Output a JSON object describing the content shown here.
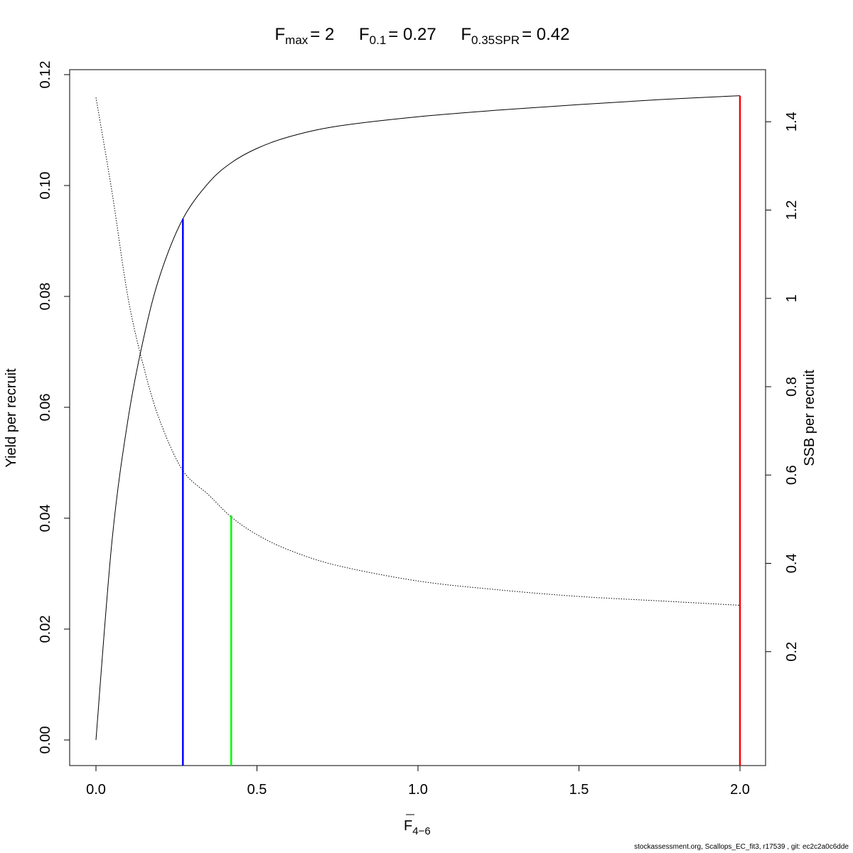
{
  "chart_data": {
    "type": "line",
    "title_parts": {
      "fmax_label": "F",
      "fmax_sub": "max",
      "fmax_value": "= 2",
      "f01_label": "F",
      "f01_sub": "0.1",
      "f01_value": "= 0.27",
      "fspr_label": "F",
      "fspr_sub": "0.35SPR",
      "fspr_value": "= 0.42"
    },
    "xlabel": {
      "main": "F",
      "sub": "4−6"
    },
    "ylabel": "Yield per recruit",
    "y2label": "SSB per recruit",
    "xlim": [
      0,
      2
    ],
    "ylim": [
      0,
      0.12
    ],
    "y2lim": [
      0,
      1.46
    ],
    "x_ticks": [
      0,
      0.5,
      1,
      1.5,
      2
    ],
    "x_tick_labels": [
      "0.0",
      "0.5",
      "1.0",
      "1.5",
      "2.0"
    ],
    "y_ticks": [
      0,
      0.02,
      0.04,
      0.06,
      0.08,
      0.1,
      0.12
    ],
    "y_tick_labels": [
      "0.00",
      "0.02",
      "0.04",
      "0.06",
      "0.08",
      "0.10",
      "0.12"
    ],
    "y2_ticks": [
      0.2,
      0.4,
      0.6,
      0.8,
      1,
      1.2,
      1.4
    ],
    "y2_tick_labels": [
      "0.2",
      "0.4",
      "0.6",
      "0.8",
      "1",
      "1.2",
      "1.4"
    ],
    "series": [
      {
        "axis": "left",
        "style": "solid",
        "color": "#000000",
        "x": [
          0,
          0.05,
          0.1,
          0.15,
          0.2,
          0.27,
          0.35,
          0.42,
          0.5,
          0.6,
          0.75,
          1.0,
          1.25,
          1.5,
          1.75,
          2.0
        ],
        "y": [
          0,
          0.036,
          0.058,
          0.073,
          0.084,
          0.094,
          0.1005,
          0.1041,
          0.1067,
          0.1088,
          0.1107,
          0.1124,
          0.1136,
          0.1146,
          0.1155,
          0.1162
        ]
      },
      {
        "axis": "right",
        "style": "dotted",
        "color": "#000000",
        "x": [
          0,
          0.05,
          0.1,
          0.15,
          0.2,
          0.27,
          0.35,
          0.42,
          0.5,
          0.6,
          0.75,
          1.0,
          1.25,
          1.5,
          1.75,
          2.0
        ],
        "y": [
          1.455,
          1.24,
          1.0,
          0.84,
          0.72,
          0.61,
          0.555,
          0.505,
          0.465,
          0.43,
          0.395,
          0.36,
          0.34,
          0.325,
          0.315,
          0.305
        ]
      }
    ],
    "reference_lines": [
      {
        "x": 0.27,
        "y_top": 0.094,
        "color": "#0000ff"
      },
      {
        "x": 0.42,
        "y_top": 0.0405,
        "color": "#00ff00"
      },
      {
        "x": 2.0,
        "y_top": 0.1162,
        "color": "#ff0000"
      }
    ]
  },
  "footer": "stockassessment.org, Scallops_EC_fit3, r17539 , git: ec2c2a0c6dde"
}
